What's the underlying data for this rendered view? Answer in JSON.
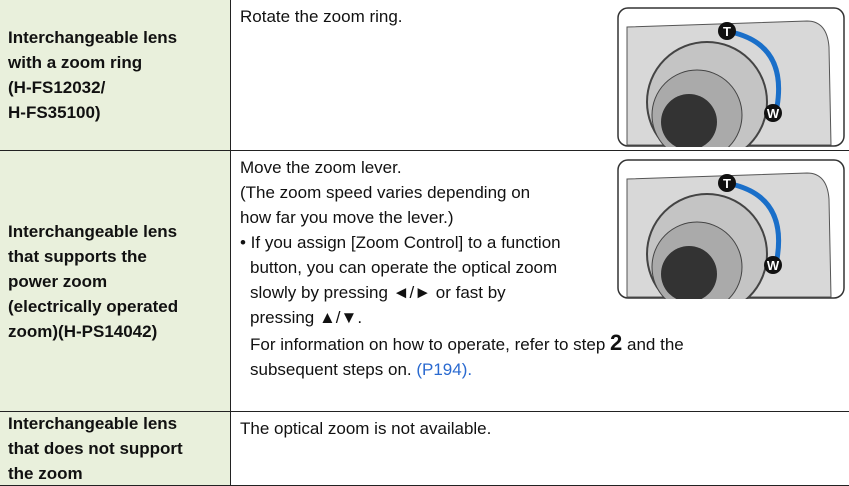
{
  "table": {
    "rows": [
      {
        "label": [
          "Interchangeable lens",
          "with a zoom ring",
          "(H-FS12032/",
          "H-FS35100)"
        ],
        "description": [
          [
            "Rotate the zoom ring."
          ]
        ],
        "markers": [
          "T",
          "W"
        ]
      },
      {
        "label": [
          "Interchangeable lens",
          "that supports the",
          "power zoom",
          "(electrically operated",
          "zoom)(H-PS14042)"
        ],
        "description": [
          [
            "Move the zoom lever."
          ],
          [
            "(The zoom speed varies depending on"
          ],
          [
            "how far you move the lever.)"
          ],
          [
            "• If you assign [Zoom Control] to a function"
          ],
          [
            "button, you can operate the optical zoom"
          ],
          [
            "slowly by pressing ◄/► or fast by"
          ],
          [
            "pressing ▲/▼."
          ],
          [
            "For information on how to operate, refer to step ",
            "2",
            " and the"
          ],
          [
            "subsequent steps on. ",
            "(P194)."
          ]
        ],
        "markers": [
          "T",
          "W"
        ]
      },
      {
        "label": [
          "Interchangeable lens",
          "that does not support",
          "the zoom"
        ],
        "description": [
          [
            "The optical zoom is not available."
          ]
        ]
      }
    ]
  }
}
